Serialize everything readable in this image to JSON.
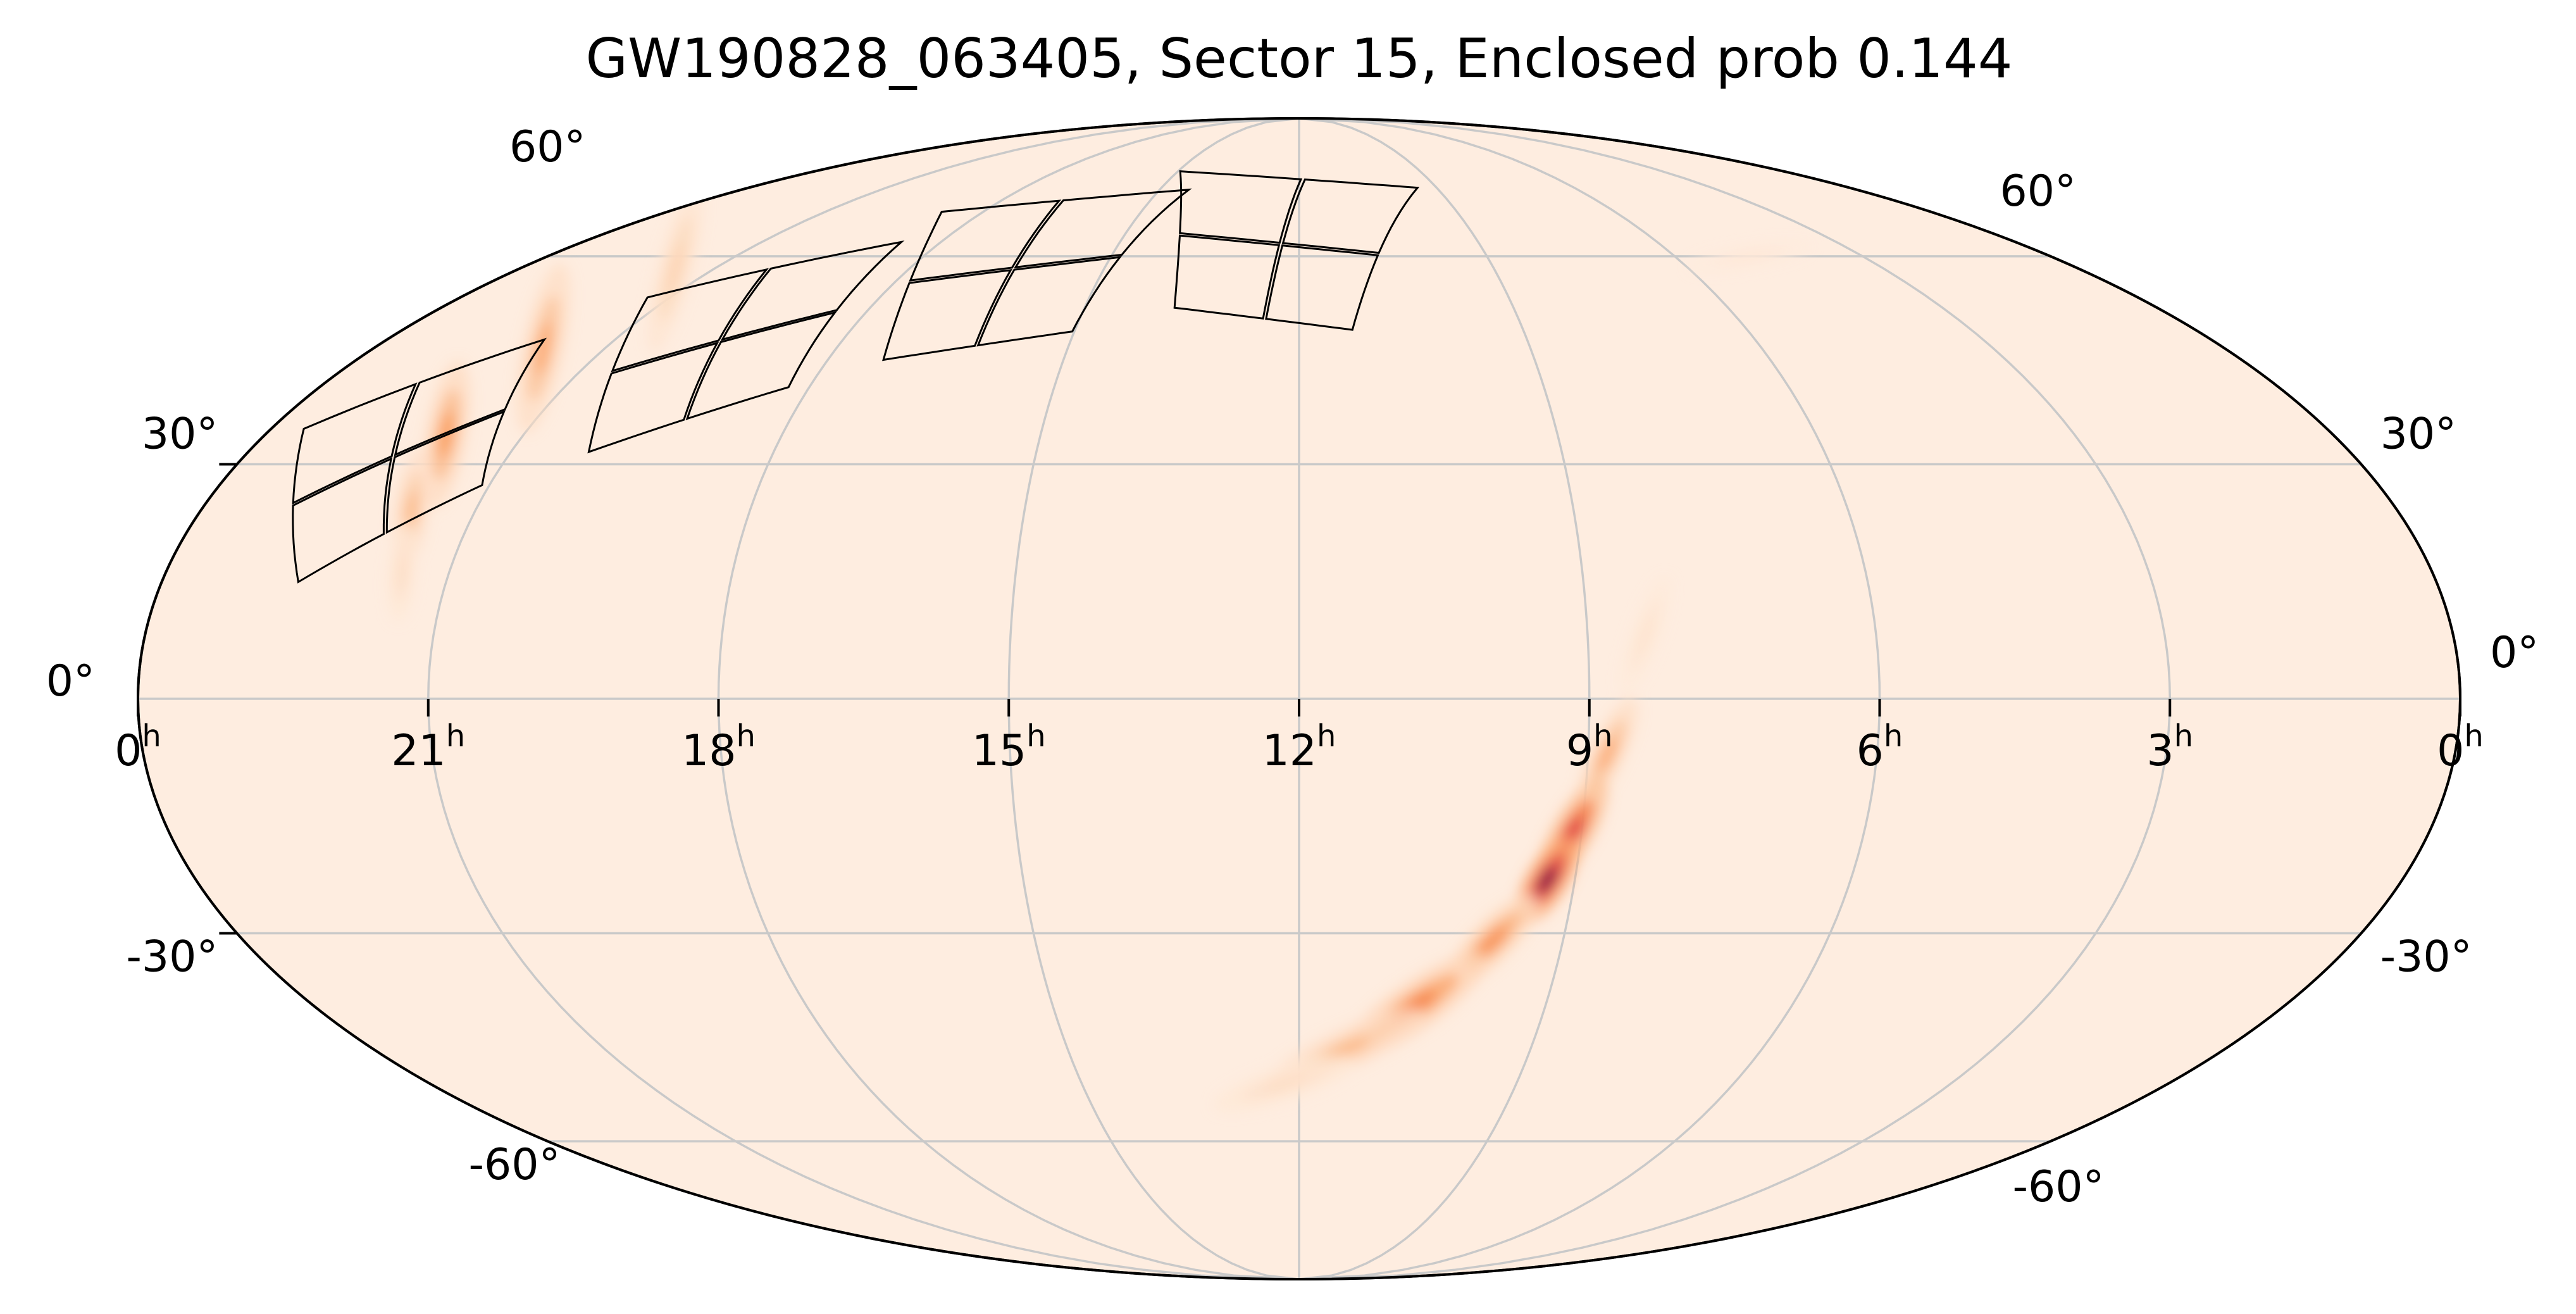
{
  "chart_data": {
    "type": "heatmap",
    "projection": "mollweide",
    "title": "GW190828_063405, Sector 15, Enclosed prob 0.144",
    "colors": {
      "background": "#feede0",
      "grid": "#c9c9c9",
      "colormap": [
        "#feede0",
        "#fdd3b2",
        "#fb9a5a",
        "#f06a3a",
        "#d6204b",
        "#7a0e45"
      ],
      "footprint": "#000000"
    },
    "grid": true,
    "x_axis": {
      "ra_hours": [
        24,
        21,
        18,
        15,
        12,
        9,
        6,
        3,
        0
      ],
      "tick_labels": [
        "0",
        "21",
        "18",
        "15",
        "12",
        "9",
        "6",
        "3",
        "0"
      ],
      "tick_superscript": "h"
    },
    "y_axis": {
      "dec_left": [
        60,
        30,
        0,
        -30,
        -60
      ],
      "dec_left_labels": [
        "60°",
        "30°",
        "0°",
        "-30°",
        "-60°"
      ],
      "dec_right": [
        60,
        30,
        0,
        -30,
        -60
      ],
      "dec_right_labels": [
        "60°",
        "30°",
        "0°",
        "-30°",
        "-60°"
      ]
    },
    "probability_regions": [
      {
        "ra_h": 21.6,
        "dec": 58,
        "width_deg": 2.5,
        "length_deg": 14,
        "angle": 75,
        "peak": 0.2
      },
      {
        "ra_h": 21.8,
        "dec": 46,
        "width_deg": 3,
        "length_deg": 14,
        "angle": 78,
        "peak": 0.35
      },
      {
        "ra_h": 21.9,
        "dec": 34,
        "width_deg": 3,
        "length_deg": 12,
        "angle": 80,
        "peak": 0.4
      },
      {
        "ra_h": 21.7,
        "dec": 24,
        "width_deg": 2.5,
        "length_deg": 10,
        "angle": 82,
        "peak": 0.3
      },
      {
        "ra_h": 21.5,
        "dec": 16,
        "width_deg": 2,
        "length_deg": 8,
        "angle": 85,
        "peak": 0.12
      },
      {
        "ra_h": 8.4,
        "dec": 8,
        "width_deg": 2,
        "length_deg": 10,
        "angle": 70,
        "peak": 0.08
      },
      {
        "ra_h": 8.8,
        "dec": -7,
        "width_deg": 2.5,
        "length_deg": 10,
        "angle": 65,
        "peak": 0.35
      },
      {
        "ra_h": 9.1,
        "dec": -17,
        "width_deg": 3,
        "length_deg": 10,
        "angle": 60,
        "peak": 0.75
      },
      {
        "ra_h": 9.3,
        "dec": -23,
        "width_deg": 3,
        "length_deg": 8,
        "angle": 58,
        "peak": 1.0
      },
      {
        "ra_h": 9.8,
        "dec": -31,
        "width_deg": 3,
        "length_deg": 10,
        "angle": 45,
        "peak": 0.45
      },
      {
        "ra_h": 10.6,
        "dec": -40,
        "width_deg": 3.5,
        "length_deg": 14,
        "angle": 35,
        "peak": 0.5
      },
      {
        "ra_h": 11.4,
        "dec": -46,
        "width_deg": 3,
        "length_deg": 14,
        "angle": 25,
        "peak": 0.3
      },
      {
        "ra_h": 12.2,
        "dec": -51,
        "width_deg": 2.5,
        "length_deg": 12,
        "angle": 18,
        "peak": 0.12
      },
      {
        "ra_h": 4.8,
        "dec": 60,
        "width_deg": 1.5,
        "length_deg": 10,
        "angle": 10,
        "peak": 0.05
      }
    ],
    "footprint_cameras": [
      {
        "ra_h": 22.3,
        "dec": 31,
        "angle": 32
      },
      {
        "ra_h": 19.6,
        "dec": 47,
        "angle": 22
      },
      {
        "ra_h": 16.4,
        "dec": 58,
        "angle": 10
      },
      {
        "ra_h": 12.3,
        "dec": 62,
        "angle": -8
      }
    ]
  }
}
